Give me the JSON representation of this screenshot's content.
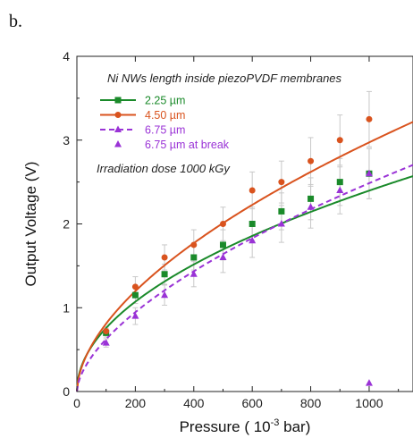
{
  "panel_label": "b.",
  "colors": {
    "green": "#1a8a2a",
    "orange": "#d9531e",
    "purple": "#9a33d6",
    "error_bar": "#c8c8c8",
    "axis": "#222222"
  },
  "chart_data": {
    "type": "scatter",
    "title": "",
    "xlabel_main": "Pressure ( 10",
    "xlabel_sup": "-3",
    "xlabel_tail": " bar)",
    "ylabel": "Output Voltage (V)",
    "xlim": [
      0,
      1150
    ],
    "ylim": [
      0,
      4
    ],
    "grid": false,
    "x_ticks": [
      0,
      200,
      400,
      600,
      800,
      1000
    ],
    "x_tick_labels": [
      "0",
      "200",
      "400",
      "600",
      "800",
      "1000"
    ],
    "y_ticks": [
      0,
      1,
      2,
      3,
      4
    ],
    "y_tick_labels": [
      "0",
      "1",
      "2",
      "3",
      "4"
    ],
    "legend_title": "Ni NWs length inside piezoPVDF membranes",
    "annotation": "Irradiation dose 1000 kGy",
    "legend_position": "top-left",
    "series": [
      {
        "name": "2.25 µm",
        "color": "green",
        "marker": "square",
        "line": "solid",
        "x": [
          100,
          200,
          300,
          400,
          500,
          600,
          700,
          800,
          900,
          1000
        ],
        "y": [
          0.7,
          1.15,
          1.4,
          1.6,
          1.75,
          2.0,
          2.15,
          2.3,
          2.5,
          2.6
        ],
        "error": [
          0.05,
          0.1,
          0.12,
          0.15,
          0.18,
          0.2,
          0.22,
          0.25,
          0.28,
          0.3
        ],
        "fit": {
          "a": 0.0758,
          "b": 0.5
        }
      },
      {
        "name": "4.50 µm",
        "color": "orange",
        "marker": "circle",
        "line": "solid",
        "x": [
          100,
          200,
          300,
          400,
          500,
          600,
          700,
          800,
          900,
          1000
        ],
        "y": [
          0.72,
          1.25,
          1.6,
          1.75,
          2.0,
          2.4,
          2.5,
          2.75,
          3.0,
          3.25
        ],
        "error": [
          0.05,
          0.12,
          0.15,
          0.18,
          0.2,
          0.22,
          0.25,
          0.28,
          0.3,
          0.33
        ],
        "fit": {
          "a": 0.06,
          "b": 0.565
        }
      },
      {
        "name": "6.75 µm",
        "color": "purple",
        "marker": "triangle",
        "line": "dashed",
        "x": [
          100,
          200,
          300,
          400,
          500,
          600,
          700,
          800,
          900,
          1000
        ],
        "y": [
          0.58,
          0.9,
          1.15,
          1.4,
          1.6,
          1.8,
          2.0,
          2.2,
          2.4,
          2.6
        ],
        "error": [
          0.05,
          0.1,
          0.12,
          0.15,
          0.18,
          0.2,
          0.22,
          0.25,
          0.28,
          0.3
        ],
        "fit": {
          "a": 0.0394,
          "b": 0.6
        }
      },
      {
        "name": "6.75 µm at break",
        "color": "purple",
        "marker": "triangle",
        "line": "none",
        "x": [
          1000
        ],
        "y": [
          0.1
        ],
        "error": [
          0
        ]
      }
    ]
  }
}
